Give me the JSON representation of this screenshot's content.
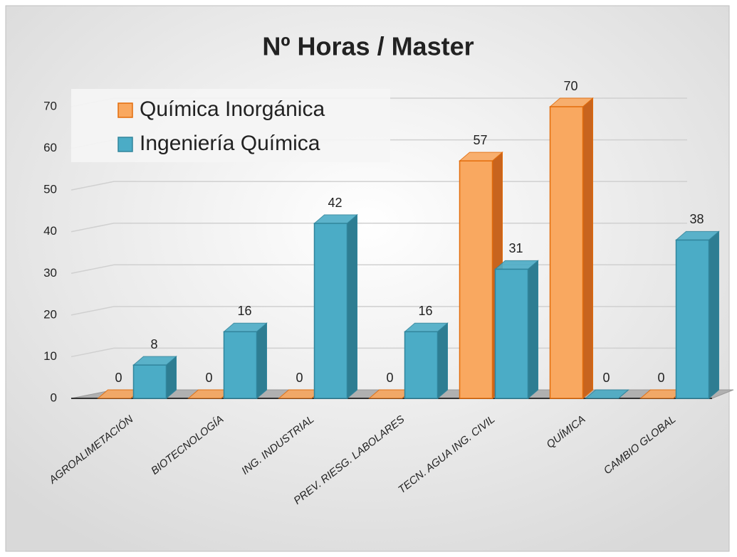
{
  "chart_data": {
    "type": "bar3d",
    "title": "Nº Horas / Master",
    "categories": [
      "AGROALIMETACIÓN",
      "BIOTECNOLOGÍA",
      "ING. INDUSTRIAL",
      "PREV. RIESG. LABOLARES",
      "TECN. AGUA ING. CIVIL",
      "QUÍMICA",
      "CAMBIO GLOBAL"
    ],
    "series": [
      {
        "name": "Química Inorgánica",
        "color": "#f9a860",
        "values": [
          0,
          0,
          0,
          0,
          57,
          70,
          0
        ]
      },
      {
        "name": "Ingeniería Química",
        "color": "#4bacc6",
        "values": [
          8,
          16,
          42,
          16,
          31,
          0,
          38
        ]
      }
    ],
    "ylim": [
      0,
      70
    ],
    "yticks": [
      0,
      10,
      20,
      30,
      40,
      50,
      60,
      70
    ],
    "grid": true,
    "legend": "top-left"
  }
}
